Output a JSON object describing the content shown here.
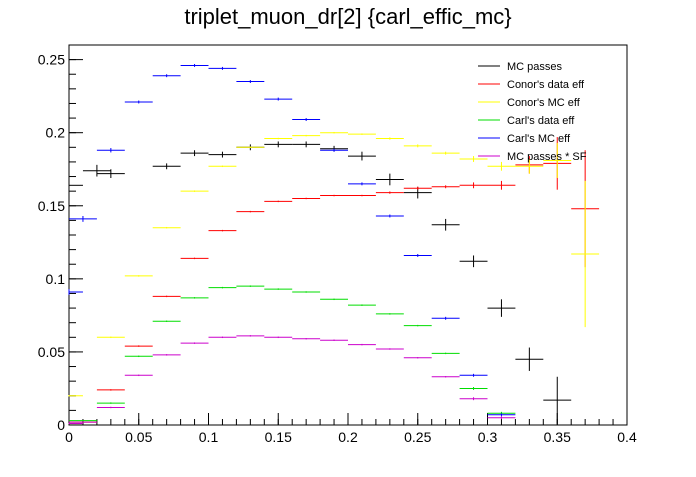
{
  "chart_data": {
    "type": "scatter",
    "title": "triplet_muon_dr[2]  {carl_effic_mc}",
    "xlabel": "",
    "ylabel": "",
    "xlim": [
      0,
      0.4
    ],
    "ylim": [
      0,
      0.26
    ],
    "grid": false,
    "legend_placement": "top-right",
    "x_ticks": [
      {
        "value": 0,
        "label": "0"
      },
      {
        "value": 0.05,
        "label": "0.05"
      },
      {
        "value": 0.1,
        "label": "0.1"
      },
      {
        "value": 0.15,
        "label": "0.15"
      },
      {
        "value": 0.2,
        "label": "0.2"
      },
      {
        "value": 0.25,
        "label": "0.25"
      },
      {
        "value": 0.3,
        "label": "0.3"
      },
      {
        "value": 0.35,
        "label": "0.35"
      },
      {
        "value": 0.4,
        "label": "0.4"
      }
    ],
    "y_ticks": [
      {
        "value": 0,
        "label": "0"
      },
      {
        "value": 0.05,
        "label": "0.05"
      },
      {
        "value": 0.1,
        "label": "0.1"
      },
      {
        "value": 0.15,
        "label": "0.15"
      },
      {
        "value": 0.2,
        "label": "0.2"
      },
      {
        "value": 0.25,
        "label": "0.25"
      }
    ],
    "bin_half_width": 0.01,
    "series": [
      {
        "name": "MC passes",
        "color": "#000000",
        "points": [
          {
            "x": 0.0,
            "y": 0.164,
            "err": 0.007
          },
          {
            "x": 0.02,
            "y": 0.174,
            "err": 0.004
          },
          {
            "x": 0.03,
            "y": 0.172,
            "err": 0.003
          },
          {
            "x": 0.07,
            "y": 0.177,
            "err": 0.002
          },
          {
            "x": 0.09,
            "y": 0.186,
            "err": 0.002
          },
          {
            "x": 0.11,
            "y": 0.185,
            "err": 0.002
          },
          {
            "x": 0.13,
            "y": 0.19,
            "err": 0.002
          },
          {
            "x": 0.15,
            "y": 0.192,
            "err": 0.002
          },
          {
            "x": 0.17,
            "y": 0.192,
            "err": 0.002
          },
          {
            "x": 0.19,
            "y": 0.189,
            "err": 0.002
          },
          {
            "x": 0.21,
            "y": 0.184,
            "err": 0.003
          },
          {
            "x": 0.23,
            "y": 0.168,
            "err": 0.004
          },
          {
            "x": 0.25,
            "y": 0.159,
            "err": 0.004
          },
          {
            "x": 0.27,
            "y": 0.137,
            "err": 0.004
          },
          {
            "x": 0.29,
            "y": 0.112,
            "err": 0.004
          },
          {
            "x": 0.31,
            "y": 0.08,
            "err": 0.006
          },
          {
            "x": 0.33,
            "y": 0.045,
            "err": 0.008
          },
          {
            "x": 0.35,
            "y": 0.017,
            "err": 0.016
          }
        ]
      },
      {
        "name": "Conor's data eff",
        "color": "#ff0000",
        "points": [
          {
            "x": 0.0,
            "y": 0.001,
            "err": 0.0003
          },
          {
            "x": 0.01,
            "y": 0.002,
            "err": 0.0003
          },
          {
            "x": 0.03,
            "y": 0.024,
            "err": 0.0005
          },
          {
            "x": 0.05,
            "y": 0.054,
            "err": 0.0005
          },
          {
            "x": 0.07,
            "y": 0.088,
            "err": 0.0005
          },
          {
            "x": 0.09,
            "y": 0.114,
            "err": 0.0005
          },
          {
            "x": 0.11,
            "y": 0.133,
            "err": 0.0005
          },
          {
            "x": 0.13,
            "y": 0.146,
            "err": 0.0005
          },
          {
            "x": 0.15,
            "y": 0.153,
            "err": 0.0005
          },
          {
            "x": 0.17,
            "y": 0.155,
            "err": 0.0005
          },
          {
            "x": 0.19,
            "y": 0.157,
            "err": 0.0005
          },
          {
            "x": 0.21,
            "y": 0.157,
            "err": 0.0005
          },
          {
            "x": 0.23,
            "y": 0.159,
            "err": 0.0008
          },
          {
            "x": 0.25,
            "y": 0.162,
            "err": 0.001
          },
          {
            "x": 0.27,
            "y": 0.163,
            "err": 0.001
          },
          {
            "x": 0.29,
            "y": 0.164,
            "err": 0.002
          },
          {
            "x": 0.31,
            "y": 0.164,
            "err": 0.003
          },
          {
            "x": 0.33,
            "y": 0.178,
            "err": 0.006
          },
          {
            "x": 0.35,
            "y": 0.179,
            "err": 0.018
          },
          {
            "x": 0.37,
            "y": 0.148,
            "err": 0.04
          }
        ]
      },
      {
        "name": "Conor's MC eff",
        "color": "#ffff00",
        "points": [
          {
            "x": 0.0,
            "y": 0.02,
            "err": 0.0005
          },
          {
            "x": 0.03,
            "y": 0.06,
            "err": 0.0005
          },
          {
            "x": 0.05,
            "y": 0.102,
            "err": 0.0005
          },
          {
            "x": 0.07,
            "y": 0.135,
            "err": 0.0005
          },
          {
            "x": 0.09,
            "y": 0.16,
            "err": 0.0005
          },
          {
            "x": 0.11,
            "y": 0.177,
            "err": 0.0005
          },
          {
            "x": 0.13,
            "y": 0.19,
            "err": 0.0005
          },
          {
            "x": 0.15,
            "y": 0.196,
            "err": 0.0005
          },
          {
            "x": 0.17,
            "y": 0.198,
            "err": 0.0005
          },
          {
            "x": 0.19,
            "y": 0.2,
            "err": 0.0005
          },
          {
            "x": 0.21,
            "y": 0.199,
            "err": 0.0005
          },
          {
            "x": 0.23,
            "y": 0.196,
            "err": 0.0008
          },
          {
            "x": 0.25,
            "y": 0.191,
            "err": 0.001
          },
          {
            "x": 0.27,
            "y": 0.186,
            "err": 0.001
          },
          {
            "x": 0.29,
            "y": 0.182,
            "err": 0.002
          },
          {
            "x": 0.31,
            "y": 0.177,
            "err": 0.003
          },
          {
            "x": 0.33,
            "y": 0.177,
            "err": 0.005
          },
          {
            "x": 0.35,
            "y": 0.181,
            "err": 0.012
          },
          {
            "x": 0.37,
            "y": 0.117,
            "err": 0.05
          }
        ]
      },
      {
        "name": "Carl's data eff",
        "color": "#00dd00",
        "points": [
          {
            "x": 0.0,
            "y": 0.001,
            "err": 0.0003
          },
          {
            "x": 0.01,
            "y": 0.003,
            "err": 0.0003
          },
          {
            "x": 0.03,
            "y": 0.015,
            "err": 0.0005
          },
          {
            "x": 0.05,
            "y": 0.047,
            "err": 0.0005
          },
          {
            "x": 0.07,
            "y": 0.071,
            "err": 0.0005
          },
          {
            "x": 0.09,
            "y": 0.087,
            "err": 0.0005
          },
          {
            "x": 0.11,
            "y": 0.094,
            "err": 0.0005
          },
          {
            "x": 0.13,
            "y": 0.095,
            "err": 0.0005
          },
          {
            "x": 0.15,
            "y": 0.093,
            "err": 0.0005
          },
          {
            "x": 0.17,
            "y": 0.091,
            "err": 0.0005
          },
          {
            "x": 0.19,
            "y": 0.086,
            "err": 0.0005
          },
          {
            "x": 0.21,
            "y": 0.082,
            "err": 0.0005
          },
          {
            "x": 0.23,
            "y": 0.076,
            "err": 0.0005
          },
          {
            "x": 0.25,
            "y": 0.068,
            "err": 0.0005
          },
          {
            "x": 0.27,
            "y": 0.049,
            "err": 0.0005
          },
          {
            "x": 0.29,
            "y": 0.025,
            "err": 0.001
          },
          {
            "x": 0.31,
            "y": 0.008,
            "err": 0.001
          }
        ]
      },
      {
        "name": "Carl's MC eff",
        "color": "#0000ff",
        "points": [
          {
            "x": 0.0,
            "y": 0.091,
            "err": 0.002
          },
          {
            "x": 0.01,
            "y": 0.141,
            "err": 0.002
          },
          {
            "x": 0.03,
            "y": 0.188,
            "err": 0.0015
          },
          {
            "x": 0.05,
            "y": 0.221,
            "err": 0.001
          },
          {
            "x": 0.07,
            "y": 0.239,
            "err": 0.001
          },
          {
            "x": 0.09,
            "y": 0.246,
            "err": 0.001
          },
          {
            "x": 0.11,
            "y": 0.244,
            "err": 0.001
          },
          {
            "x": 0.13,
            "y": 0.235,
            "err": 0.001
          },
          {
            "x": 0.15,
            "y": 0.223,
            "err": 0.001
          },
          {
            "x": 0.17,
            "y": 0.209,
            "err": 0.001
          },
          {
            "x": 0.19,
            "y": 0.188,
            "err": 0.001
          },
          {
            "x": 0.21,
            "y": 0.165,
            "err": 0.001
          },
          {
            "x": 0.23,
            "y": 0.143,
            "err": 0.001
          },
          {
            "x": 0.25,
            "y": 0.116,
            "err": 0.001
          },
          {
            "x": 0.27,
            "y": 0.073,
            "err": 0.001
          },
          {
            "x": 0.29,
            "y": 0.034,
            "err": 0.001
          },
          {
            "x": 0.31,
            "y": 0.007,
            "err": 0.001
          }
        ]
      },
      {
        "name": "MC passes * SF",
        "color": "#cc00cc",
        "points": [
          {
            "x": 0.0,
            "y": 0.001,
            "err": 0.0003
          },
          {
            "x": 0.01,
            "y": 0.002,
            "err": 0.0003
          },
          {
            "x": 0.03,
            "y": 0.012,
            "err": 0.0005
          },
          {
            "x": 0.05,
            "y": 0.034,
            "err": 0.0005
          },
          {
            "x": 0.07,
            "y": 0.048,
            "err": 0.0005
          },
          {
            "x": 0.09,
            "y": 0.056,
            "err": 0.0005
          },
          {
            "x": 0.11,
            "y": 0.06,
            "err": 0.0005
          },
          {
            "x": 0.13,
            "y": 0.061,
            "err": 0.0005
          },
          {
            "x": 0.15,
            "y": 0.06,
            "err": 0.0005
          },
          {
            "x": 0.17,
            "y": 0.059,
            "err": 0.0005
          },
          {
            "x": 0.19,
            "y": 0.058,
            "err": 0.0005
          },
          {
            "x": 0.21,
            "y": 0.055,
            "err": 0.0005
          },
          {
            "x": 0.23,
            "y": 0.052,
            "err": 0.0005
          },
          {
            "x": 0.25,
            "y": 0.046,
            "err": 0.0005
          },
          {
            "x": 0.27,
            "y": 0.033,
            "err": 0.0005
          },
          {
            "x": 0.29,
            "y": 0.018,
            "err": 0.001
          },
          {
            "x": 0.31,
            "y": 0.005,
            "err": 0.001
          }
        ]
      }
    ]
  }
}
